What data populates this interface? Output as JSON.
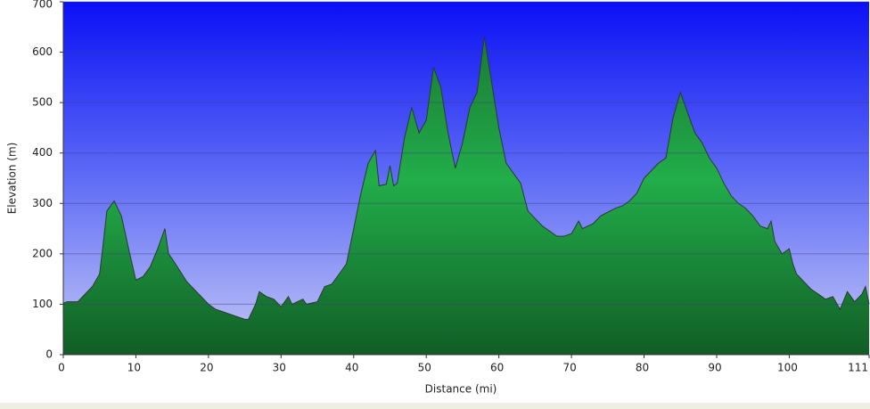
{
  "chart_data": {
    "type": "area",
    "x_label": "Distance   (mi)",
    "y_label": "Elevation (m)",
    "x": [
      0,
      0.5,
      2,
      3,
      4,
      5,
      5.5,
      6,
      7,
      8,
      9,
      10,
      11,
      12,
      13,
      14,
      14.5,
      15,
      17,
      18,
      20,
      21,
      23,
      25,
      25.5,
      26.5,
      27,
      28,
      29,
      30,
      31,
      31.5,
      33,
      33.5,
      35,
      36,
      37,
      38,
      39,
      40,
      41,
      42,
      43,
      43.5,
      44.5,
      45,
      45.5,
      46,
      47,
      48,
      49,
      50,
      51,
      52,
      53,
      54,
      55,
      56,
      57,
      58,
      59,
      60,
      61,
      62,
      63,
      64,
      65,
      66,
      67,
      68,
      69,
      70,
      71,
      71.5,
      73,
      74,
      76,
      77,
      78,
      79,
      80,
      81,
      82,
      83,
      84,
      85,
      86,
      87,
      88,
      89,
      90,
      91,
      92,
      93,
      94,
      95,
      96,
      97,
      97.5,
      98,
      99,
      100,
      100.5,
      101,
      102,
      103,
      104,
      105,
      106,
      107,
      108,
      109,
      110,
      110.5,
      111
    ],
    "values": [
      102,
      105,
      105,
      120,
      135,
      160,
      220,
      285,
      305,
      275,
      210,
      148,
      155,
      175,
      210,
      250,
      200,
      190,
      145,
      130,
      100,
      90,
      80,
      70,
      70,
      100,
      125,
      115,
      110,
      95,
      115,
      100,
      110,
      100,
      105,
      135,
      140,
      160,
      180,
      250,
      320,
      380,
      405,
      335,
      338,
      375,
      335,
      340,
      430,
      490,
      440,
      465,
      570,
      530,
      440,
      370,
      420,
      490,
      520,
      630,
      540,
      450,
      380,
      360,
      340,
      285,
      270,
      255,
      245,
      235,
      235,
      240,
      265,
      250,
      260,
      275,
      290,
      295,
      305,
      320,
      350,
      365,
      380,
      390,
      470,
      520,
      480,
      440,
      420,
      390,
      370,
      340,
      315,
      300,
      290,
      275,
      255,
      250,
      265,
      225,
      200,
      210,
      180,
      160,
      145,
      130,
      120,
      110,
      115,
      90,
      125,
      105,
      120,
      135,
      100
    ],
    "color": "#22a845",
    "xlim": [
      0,
      111
    ],
    "ylim": [
      0,
      700
    ],
    "xticks": [
      0,
      10,
      20,
      30,
      40,
      50,
      60,
      70,
      80,
      90,
      100,
      111
    ],
    "yticks": [
      0,
      100,
      200,
      300,
      400,
      500,
      600,
      700
    ],
    "grid": true
  }
}
